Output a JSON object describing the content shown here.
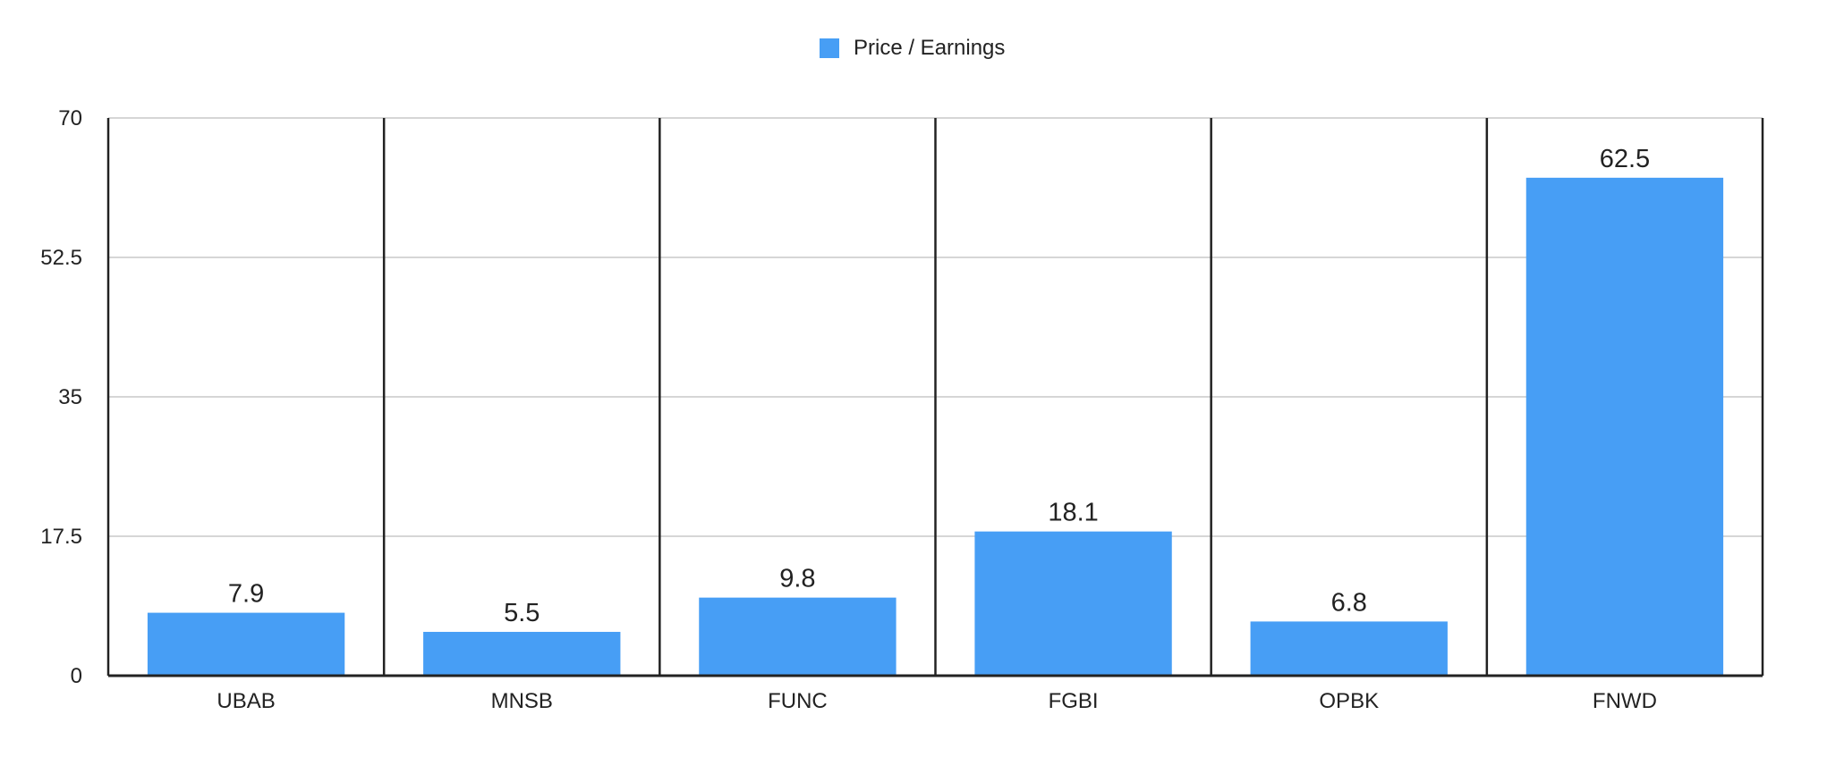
{
  "chart_data": {
    "type": "bar",
    "categories": [
      "UBAB",
      "MNSB",
      "FUNC",
      "FGBI",
      "OPBK",
      "FNWD"
    ],
    "series": [
      {
        "name": "Price / Earnings",
        "values": [
          7.9,
          5.5,
          9.8,
          18.1,
          6.8,
          62.5
        ]
      }
    ],
    "data_labels": [
      "7.9",
      "5.5",
      "9.8",
      "18.1",
      "6.8",
      "62.5"
    ],
    "y_ticks": [
      "0",
      "17.5",
      "35",
      "52.5",
      "70"
    ],
    "ylim": [
      0,
      70
    ],
    "legend_position": "top-center",
    "grid": true,
    "colors": {
      "bar": "#479ef5",
      "gridline": "#c8c8c8",
      "axis": "#222222",
      "text": "#222222"
    }
  }
}
